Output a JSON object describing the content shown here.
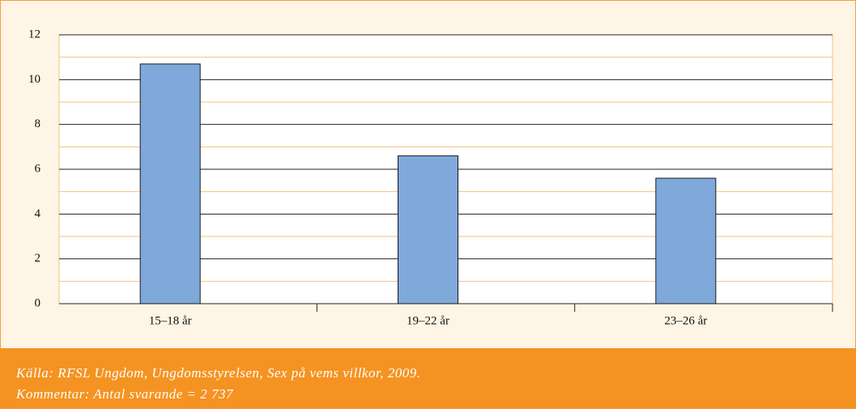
{
  "chart_data": {
    "type": "bar",
    "categories": [
      "15–18 år",
      "19–22 år",
      "23–26 år"
    ],
    "values": [
      10.7,
      6.6,
      5.6
    ],
    "color": "#7fa9db",
    "ylim": [
      0,
      12
    ],
    "yticks": [
      0,
      2,
      4,
      6,
      8,
      10,
      12
    ],
    "minor_yticks": [
      1,
      3,
      5,
      7,
      9,
      11
    ],
    "grid": true,
    "notes": [
      "Källa: RFSL Ungdom, Ungdomsstyrelsen, Sex på vems villkor, 2009.",
      "Kommentar: Antal svarande = 2 737"
    ]
  }
}
